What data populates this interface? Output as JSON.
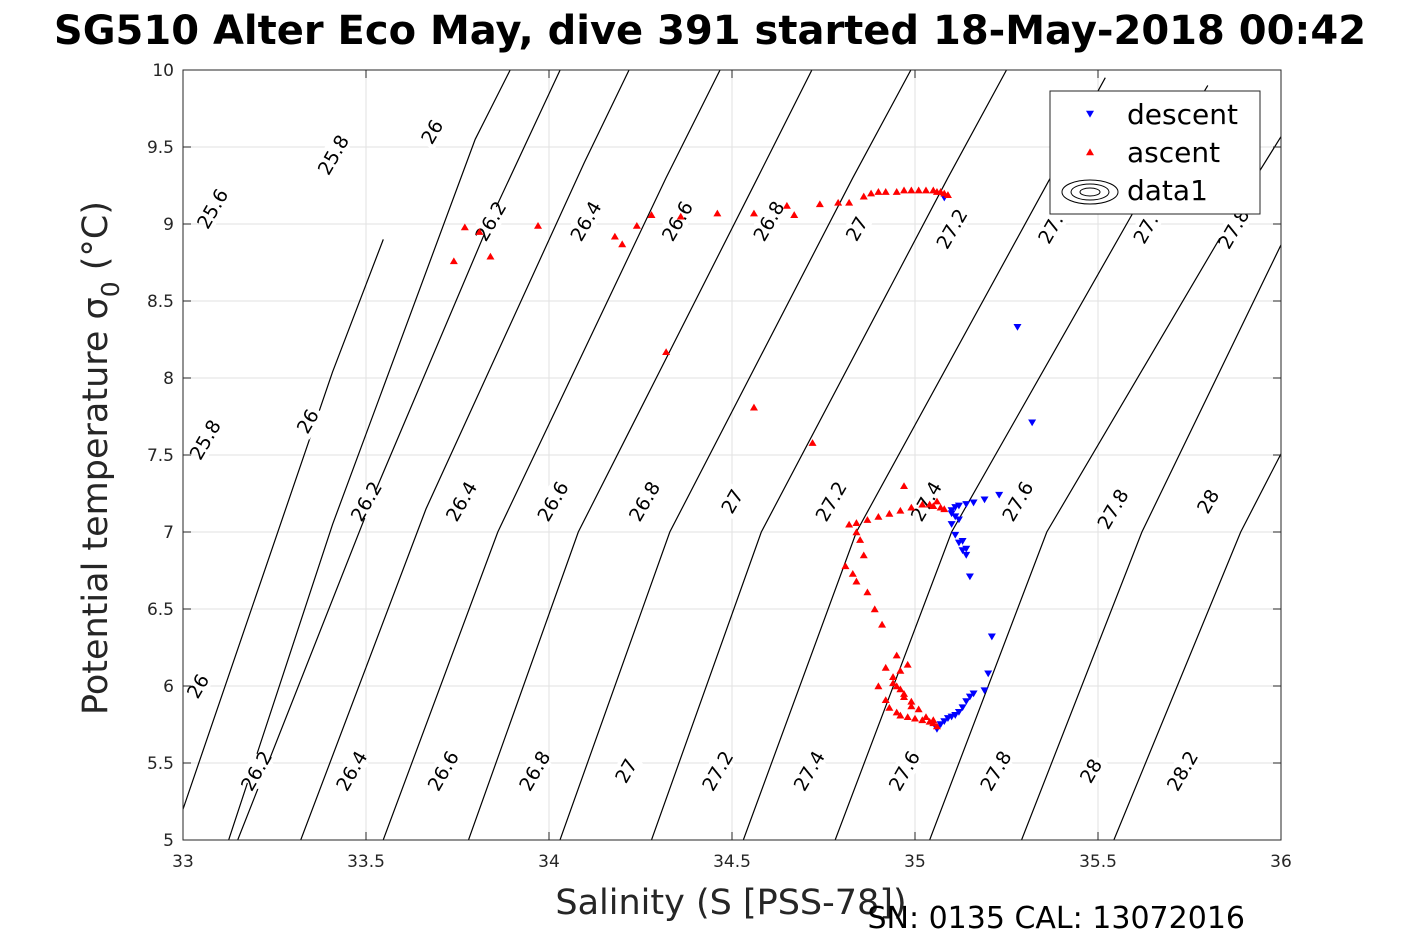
{
  "chart_data": {
    "type": "scatter",
    "title": "SG510 Alter Eco May, dive 391 started 18-May-2018 00:42",
    "xlabel": "Salinity (S [PSS-78])",
    "ylabel_main": "Potential temperature σ",
    "ylabel_sub": "0",
    "ylabel_unit": "(°C)",
    "footer": "SN: 0135  CAL: 13072016",
    "xlim": [
      33,
      36
    ],
    "ylim": [
      5,
      10
    ],
    "xticks": [
      "33",
      "33.5",
      "34",
      "34.5",
      "35",
      "35.5",
      "36"
    ],
    "yticks": [
      "5",
      "5.5",
      "6",
      "6.5",
      "7",
      "7.5",
      "8",
      "8.5",
      "9",
      "9.5",
      "10"
    ],
    "grid": true,
    "legend_position": "top-right",
    "legend": [
      {
        "label": "descent",
        "marker": "triangle-down",
        "color": "#0000ff"
      },
      {
        "label": "ascent",
        "marker": "triangle-up",
        "color": "#ff0000"
      },
      {
        "label": "data1",
        "marker": "contour",
        "color": "#000000"
      }
    ],
    "contours": [
      {
        "level": "25.8",
        "x": [
          33.0,
          33.4088,
          33.5472
        ],
        "y": [
          5.2,
          8.04,
          8.9
        ]
      },
      {
        "level": "26",
        "x": [
          33.0,
          33.4088,
          33.7983,
          34.0
        ],
        "y": [
          4.1,
          7.05,
          9.55,
          10.5
        ]
      },
      {
        "level": "26.2",
        "x": [
          33.0,
          33.523,
          33.844,
          34.05
        ],
        "y": [
          4.1,
          7.25,
          9.05,
          10.1
        ]
      },
      {
        "level": "26.4",
        "x": [
          33.25,
          33.664,
          34.0966,
          34.3
        ],
        "y": [
          4.55,
          7.15,
          9.4,
          10.4
        ]
      },
      {
        "level": "26.6",
        "x": [
          33.5,
          33.86,
          34.32,
          34.52
        ],
        "y": [
          4.7,
          7.0,
          9.3,
          10.25
        ]
      },
      {
        "level": "26.8",
        "x": [
          33.75,
          34.08,
          34.57,
          34.75
        ],
        "y": [
          4.8,
          7.0,
          9.3,
          10.15
        ]
      },
      {
        "level": "27",
        "x": [
          34.0,
          34.33,
          34.83,
          35.0
        ],
        "y": [
          4.8,
          7.0,
          9.3,
          10.05
        ]
      },
      {
        "level": "27.2",
        "x": [
          34.25,
          34.58,
          35.09,
          35.25
        ],
        "y": [
          4.8,
          7.0,
          9.3,
          10.0
        ]
      },
      {
        "level": "27.4",
        "x": [
          34.5,
          34.84,
          35.37,
          35.52
        ],
        "y": [
          4.8,
          7.0,
          9.3,
          9.95
        ]
      },
      {
        "level": "27.6",
        "x": [
          34.75,
          35.1,
          35.65,
          35.8
        ],
        "y": [
          4.8,
          7.0,
          9.3,
          9.9
        ]
      },
      {
        "level": "27.8",
        "x": [
          35.0,
          35.36,
          35.93,
          36.1
        ],
        "y": [
          4.75,
          7.0,
          9.3,
          9.95
        ]
      },
      {
        "level": "28",
        "x": [
          35.25,
          35.62,
          36.15
        ],
        "y": [
          4.75,
          7.0,
          9.6
        ]
      },
      {
        "level": "28.2",
        "x": [
          35.5,
          35.89,
          36.15
        ],
        "y": [
          4.75,
          7.0,
          8.2
        ]
      }
    ],
    "contour_labels": [
      {
        "text": "25.6",
        "x": 33.08,
        "y": 9.1,
        "angle": -60
      },
      {
        "text": "25.8",
        "x": 33.41,
        "y": 9.45,
        "angle": -60
      },
      {
        "text": "26",
        "x": 33.68,
        "y": 9.6,
        "angle": -60
      },
      {
        "text": "26.2",
        "x": 33.84,
        "y": 9.02,
        "angle": -60
      },
      {
        "text": "26.4",
        "x": 34.1,
        "y": 9.02,
        "angle": -60
      },
      {
        "text": "26.6",
        "x": 34.35,
        "y": 9.02,
        "angle": -60
      },
      {
        "text": "26.8",
        "x": 34.6,
        "y": 9.02,
        "angle": -60
      },
      {
        "text": "27",
        "x": 34.84,
        "y": 8.97,
        "angle": -60
      },
      {
        "text": "27.2",
        "x": 35.1,
        "y": 8.97,
        "angle": -60
      },
      {
        "text": "27.",
        "x": 35.37,
        "y": 8.97,
        "angle": -60
      },
      {
        "text": "27.",
        "x": 35.63,
        "y": 8.97,
        "angle": -60
      },
      {
        "text": "27.8",
        "x": 35.87,
        "y": 8.97,
        "angle": -60
      },
      {
        "text": "25.8",
        "x": 33.06,
        "y": 7.6,
        "angle": -60
      },
      {
        "text": "26",
        "x": 33.34,
        "y": 7.72,
        "angle": -60
      },
      {
        "text": "26.2",
        "x": 33.5,
        "y": 7.2,
        "angle": -60
      },
      {
        "text": "26.4",
        "x": 33.76,
        "y": 7.2,
        "angle": -60
      },
      {
        "text": "26.6",
        "x": 34.01,
        "y": 7.2,
        "angle": -60
      },
      {
        "text": "26.8",
        "x": 34.26,
        "y": 7.2,
        "angle": -60
      },
      {
        "text": "27",
        "x": 34.5,
        "y": 7.2,
        "angle": -60
      },
      {
        "text": "27.2",
        "x": 34.77,
        "y": 7.2,
        "angle": -60
      },
      {
        "text": "27.4",
        "x": 35.03,
        "y": 7.2,
        "angle": -60
      },
      {
        "text": "27.6",
        "x": 35.28,
        "y": 7.2,
        "angle": -60
      },
      {
        "text": "27.8",
        "x": 35.54,
        "y": 7.15,
        "angle": -60
      },
      {
        "text": "28",
        "x": 35.8,
        "y": 7.2,
        "angle": -60
      },
      {
        "text": "26",
        "x": 33.04,
        "y": 6.0,
        "angle": -60
      },
      {
        "text": "26.2",
        "x": 33.2,
        "y": 5.45,
        "angle": -60
      },
      {
        "text": "26.4",
        "x": 33.46,
        "y": 5.45,
        "angle": -60
      },
      {
        "text": "26.6",
        "x": 33.71,
        "y": 5.45,
        "angle": -60
      },
      {
        "text": "26.8",
        "x": 33.96,
        "y": 5.45,
        "angle": -60
      },
      {
        "text": "27",
        "x": 34.21,
        "y": 5.45,
        "angle": -60
      },
      {
        "text": "27.2",
        "x": 34.46,
        "y": 5.45,
        "angle": -60
      },
      {
        "text": "27.4",
        "x": 34.71,
        "y": 5.45,
        "angle": -60
      },
      {
        "text": "27.6",
        "x": 34.97,
        "y": 5.45,
        "angle": -60
      },
      {
        "text": "27.8",
        "x": 35.22,
        "y": 5.45,
        "angle": -60
      },
      {
        "text": "28",
        "x": 35.48,
        "y": 5.45,
        "angle": -60
      },
      {
        "text": "28.2",
        "x": 35.73,
        "y": 5.45,
        "angle": -60
      }
    ],
    "series": [
      {
        "name": "descent",
        "marker": "triangle-down",
        "color": "#0000ff",
        "x": [
          35.08,
          35.28,
          35.32,
          35.23,
          35.19,
          35.16,
          35.14,
          35.12,
          35.11,
          35.1,
          35.1,
          35.11,
          35.12,
          35.13,
          35.14,
          35.15,
          35.1,
          35.11,
          35.12,
          35.13,
          35.14,
          35.21,
          35.2,
          35.19,
          35.16,
          35.15,
          35.14,
          35.13,
          35.12,
          35.11,
          35.1,
          35.09,
          35.08,
          35.07,
          35.06,
          35.06
        ],
        "y": [
          9.17,
          8.33,
          7.71,
          7.24,
          7.21,
          7.19,
          7.18,
          7.17,
          7.16,
          7.14,
          7.12,
          7.1,
          7.08,
          6.94,
          6.89,
          6.71,
          7.05,
          6.98,
          6.93,
          6.88,
          6.85,
          6.32,
          6.08,
          5.97,
          5.95,
          5.93,
          5.9,
          5.86,
          5.83,
          5.81,
          5.8,
          5.79,
          5.77,
          5.75,
          5.73,
          5.72
        ]
      },
      {
        "name": "ascent",
        "marker": "triangle-up",
        "color": "#ff0000",
        "x": [
          33.74,
          33.77,
          33.84,
          33.81,
          33.97,
          34.18,
          34.2,
          34.24,
          34.28,
          34.36,
          34.46,
          34.56,
          34.65,
          34.67,
          34.74,
          34.79,
          34.82,
          34.86,
          34.88,
          34.9,
          34.92,
          34.95,
          34.97,
          34.99,
          35.01,
          35.03,
          35.05,
          35.06,
          35.07,
          35.08,
          35.09,
          34.32,
          34.56,
          34.72,
          34.82,
          34.84,
          34.87,
          34.9,
          34.93,
          34.96,
          34.99,
          35.02,
          35.05,
          35.07,
          35.08,
          35.06,
          35.04,
          34.97,
          34.84,
          34.85,
          34.86,
          34.83,
          34.81,
          34.84,
          34.87,
          34.89,
          34.91,
          34.92,
          34.94,
          34.96,
          34.97,
          34.99,
          34.93,
          34.95,
          34.96,
          34.98,
          35.0,
          35.02,
          35.04,
          35.05,
          35.06,
          34.96,
          34.94,
          34.95,
          34.97,
          34.99,
          35.01,
          35.03,
          35.05,
          34.98,
          34.95,
          34.92,
          34.9
        ],
        "y": [
          8.76,
          8.98,
          8.79,
          8.95,
          8.99,
          8.92,
          8.87,
          8.99,
          9.06,
          9.05,
          9.07,
          9.07,
          9.12,
          9.06,
          9.13,
          9.14,
          9.14,
          9.18,
          9.2,
          9.21,
          9.21,
          9.21,
          9.22,
          9.22,
          9.22,
          9.22,
          9.22,
          9.21,
          9.21,
          9.2,
          9.19,
          8.17,
          7.81,
          7.58,
          7.05,
          7.06,
          7.08,
          7.1,
          7.12,
          7.14,
          7.16,
          7.18,
          7.17,
          7.16,
          7.15,
          7.2,
          7.18,
          7.3,
          7.0,
          6.95,
          6.85,
          6.73,
          6.78,
          6.68,
          6.61,
          6.5,
          6.4,
          6.12,
          6.02,
          5.98,
          5.93,
          5.87,
          5.86,
          5.83,
          5.81,
          5.8,
          5.79,
          5.78,
          5.77,
          5.76,
          5.74,
          6.1,
          6.06,
          6.0,
          5.95,
          5.9,
          5.85,
          5.8,
          5.78,
          6.14,
          6.2,
          5.91,
          6.0
        ]
      }
    ]
  }
}
